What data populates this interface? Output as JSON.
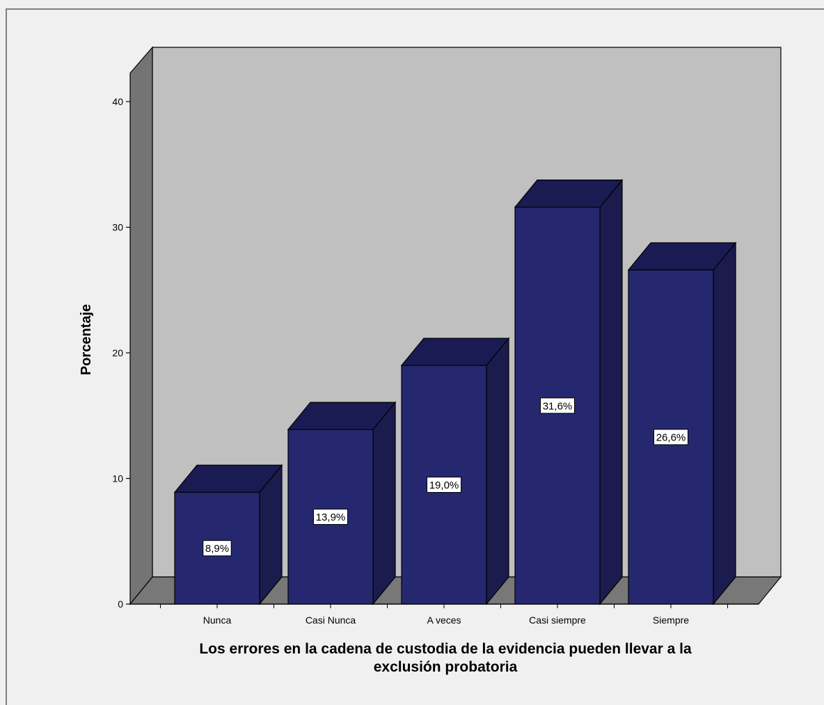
{
  "chart_data": {
    "type": "bar",
    "three_d": true,
    "categories": [
      "Nunca",
      "Casi Nunca",
      "A veces",
      "Casi siempre",
      "Siempre"
    ],
    "values": [
      8.9,
      13.9,
      19.0,
      31.6,
      26.6
    ],
    "data_labels": [
      "8,9%",
      "13,9%",
      "19,0%",
      "31,6%",
      "26,6%"
    ],
    "title": "",
    "xlabel_lines": [
      "Los errores en la cadena de custodia de la evidencia pueden llevar a la",
      "exclusión probatoria"
    ],
    "ylabel": "Porcentaje",
    "ylim": [
      0,
      40
    ],
    "yticks": [
      0,
      10,
      20,
      30,
      40
    ],
    "grid": false,
    "legend": "none",
    "colors": {
      "bar_front": "#26286f",
      "bar_top": "#1b1b53",
      "bar_side": "#1b1b4d",
      "back_wall": "#c0c0c0",
      "left_wall": "#747474",
      "floor": "#787878",
      "page_background": "#f0f0f0",
      "frame_border": "#808080"
    }
  }
}
